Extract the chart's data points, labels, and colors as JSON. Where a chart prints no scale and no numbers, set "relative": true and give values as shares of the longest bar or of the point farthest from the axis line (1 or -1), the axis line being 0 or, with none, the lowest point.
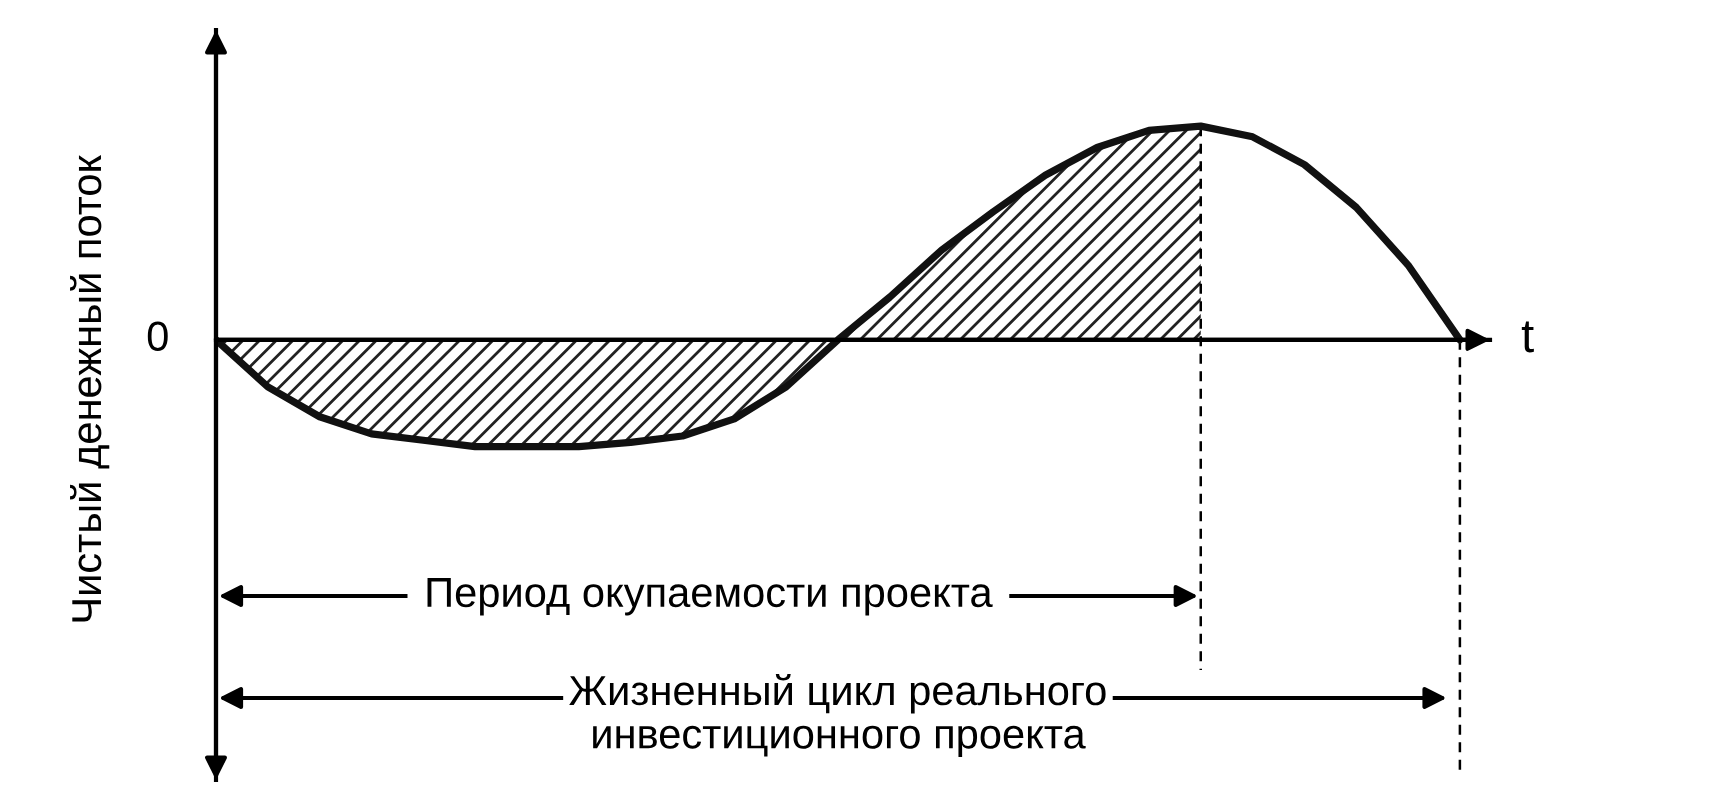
{
  "chart_data": {
    "type": "line",
    "relative": true,
    "xlabel": "t",
    "ylabel": "Чистый денежный поток",
    "categories": [
      null,
      null,
      null,
      null,
      null,
      null,
      null,
      null,
      null,
      null,
      null,
      null,
      null,
      null,
      null,
      null,
      null,
      null,
      null,
      null,
      null,
      null,
      null,
      null,
      null
    ],
    "series": [
      {
        "type": "area",
        "color": "#222222",
        "values": [
          0,
          -0.22,
          -0.36,
          -0.44,
          -0.47,
          -0.5,
          -0.5,
          -0.5,
          -0.48,
          -0.45,
          -0.37,
          -0.22,
          0,
          0.2,
          0.42,
          0.6,
          0.77,
          0.9,
          0.98,
          1.0,
          null,
          null,
          null,
          null,
          null
        ]
      },
      {
        "color": "#111111",
        "values": [
          0,
          -0.22,
          -0.36,
          -0.44,
          -0.47,
          -0.5,
          -0.5,
          -0.5,
          -0.48,
          -0.45,
          -0.37,
          -0.22,
          0,
          0.2,
          0.42,
          0.6,
          0.77,
          0.9,
          0.98,
          1.0,
          0.95,
          0.82,
          0.62,
          0.35,
          0
        ]
      }
    ],
    "annotations": [
      "0",
      "Период окупаемости проекта",
      "Жизненный цикл реального\nинвестиционного проекта"
    ],
    "marker": "none",
    "line_style": "solid"
  }
}
